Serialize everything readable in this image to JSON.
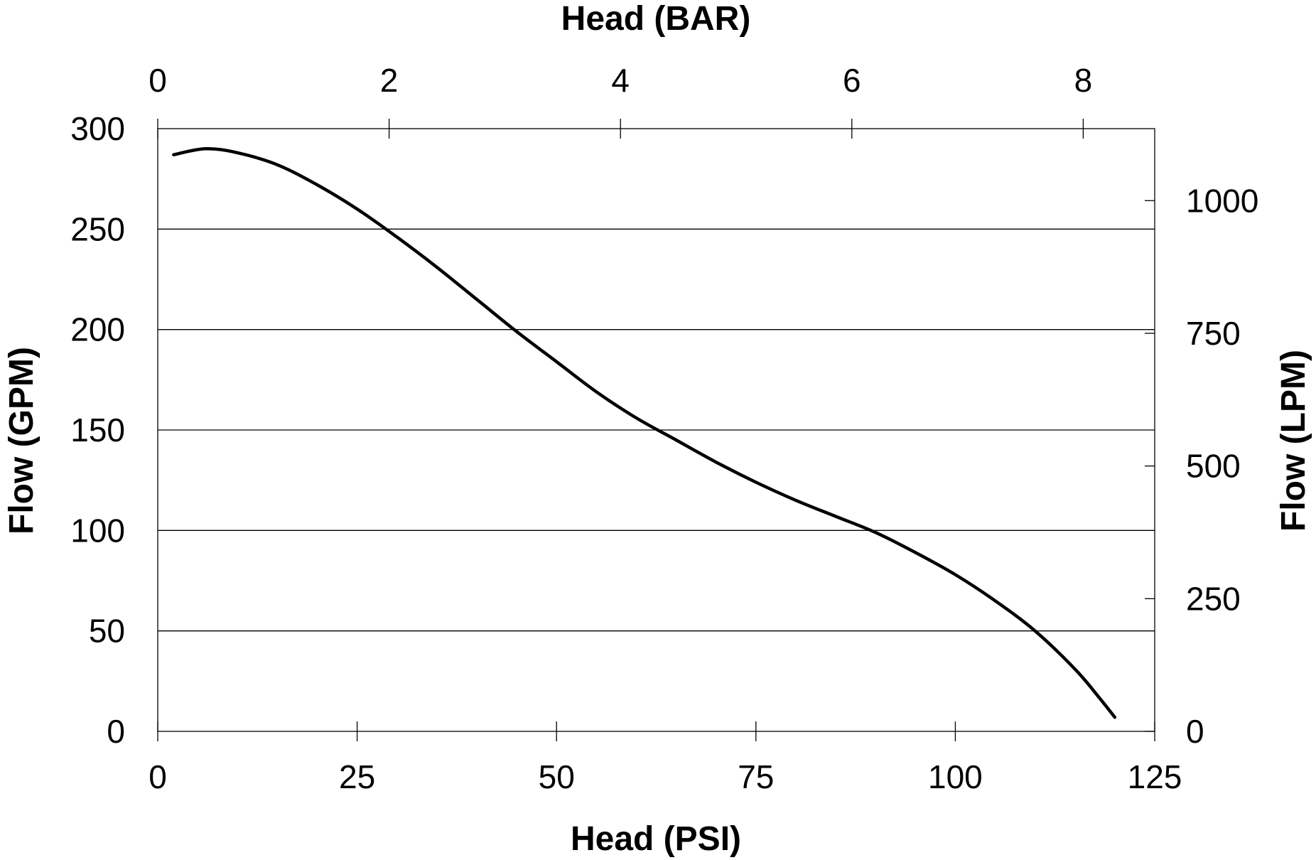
{
  "chart_data": {
    "type": "line",
    "xlabel_bottom": "Head (PSI)",
    "xlabel_top": "Head (BAR)",
    "ylabel_left": "Flow (GPM)",
    "ylabel_right": "Flow (LPM)",
    "x_bottom": {
      "lim": [
        0,
        125
      ],
      "ticks": [
        "0",
        "25",
        "50",
        "75",
        "100",
        "125"
      ]
    },
    "x_top": {
      "lim": [
        0,
        8.618
      ],
      "ticks": [
        "0",
        "2",
        "4",
        "6",
        "8"
      ]
    },
    "y_left": {
      "lim": [
        0,
        300
      ],
      "ticks": [
        "0",
        "50",
        "100",
        "150",
        "200",
        "250",
        "300"
      ]
    },
    "y_right": {
      "lim": [
        0,
        1135.6
      ],
      "ticks": [
        "0",
        "250",
        "500",
        "750",
        "1000"
      ]
    },
    "grid": "horizontal",
    "series": [
      {
        "x": [
          2,
          6,
          10,
          15,
          20,
          25,
          30,
          35,
          40,
          45,
          50,
          55,
          60,
          65,
          70,
          75,
          80,
          85,
          90,
          95,
          100,
          105,
          110,
          115,
          118,
          120
        ],
        "y": [
          287,
          290,
          288,
          282,
          272,
          260,
          246,
          231,
          215,
          199,
          184,
          169,
          156,
          145,
          134,
          124,
          115,
          107,
          99,
          89,
          78,
          65,
          50,
          31,
          17,
          7
        ]
      }
    ]
  }
}
